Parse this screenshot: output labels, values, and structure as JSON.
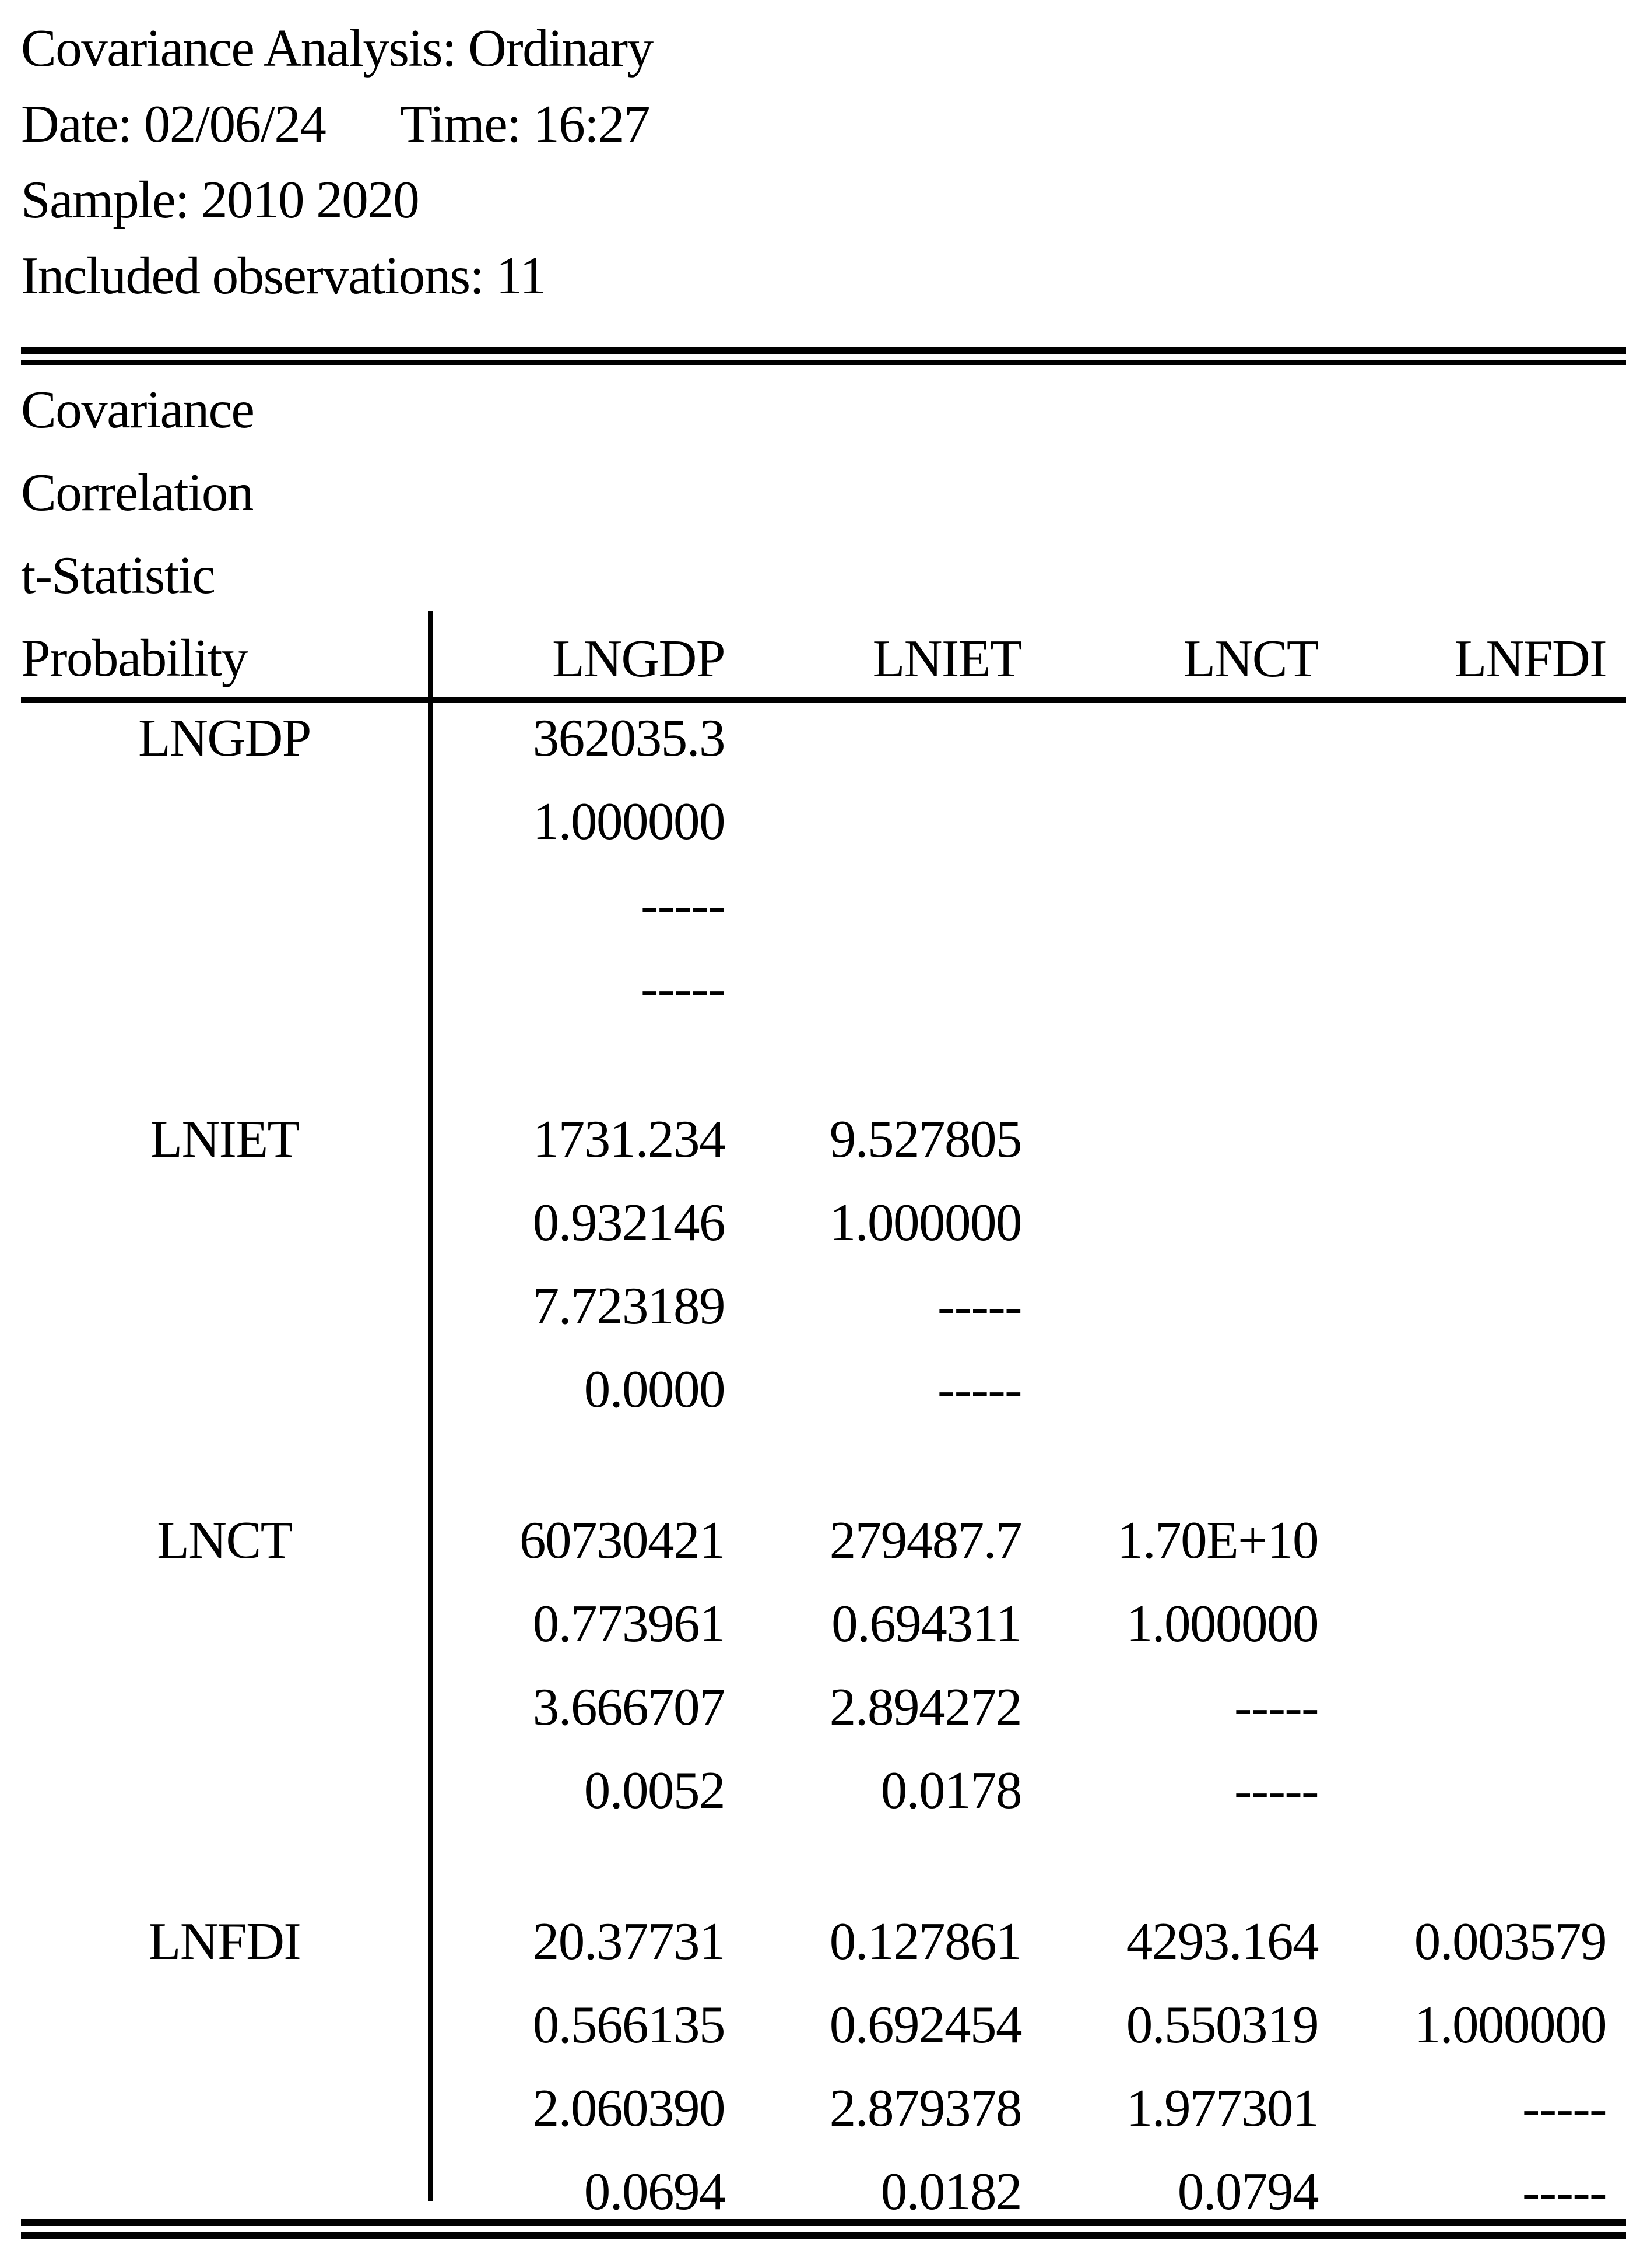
{
  "header": {
    "title": "Covariance Analysis: Ordinary",
    "date": "Date: 02/06/24",
    "time": "Time: 16:27",
    "sample": "Sample: 2010 2020",
    "observations": "Included observations: 11"
  },
  "measures": [
    "Covariance",
    "Correlation",
    "t-Statistic",
    "Probability"
  ],
  "columns": [
    "LNGDP",
    "LNIET",
    "LNCT",
    "LNFDI"
  ],
  "rows": [
    {
      "label": "LNGDP",
      "values": [
        [
          "362035.3",
          "",
          "",
          ""
        ],
        [
          "1.000000",
          "",
          "",
          ""
        ],
        [
          "-----",
          "",
          "",
          ""
        ],
        [
          "-----",
          "",
          "",
          ""
        ]
      ]
    },
    {
      "label": "LNIET",
      "values": [
        [
          "1731.234",
          "9.527805",
          "",
          ""
        ],
        [
          "0.932146",
          "1.000000",
          "",
          ""
        ],
        [
          "7.723189",
          "-----",
          "",
          ""
        ],
        [
          "0.0000",
          "-----",
          "",
          ""
        ]
      ]
    },
    {
      "label": "LNCT",
      "values": [
        [
          "60730421",
          "279487.7",
          "1.70E+10",
          ""
        ],
        [
          "0.773961",
          "0.694311",
          "1.000000",
          ""
        ],
        [
          "3.666707",
          "2.894272",
          "-----",
          ""
        ],
        [
          "0.0052",
          "0.0178",
          "-----",
          ""
        ]
      ]
    },
    {
      "label": "LNFDI",
      "values": [
        [
          "20.37731",
          "0.127861",
          "4293.164",
          "0.003579"
        ],
        [
          "0.566135",
          "0.692454",
          "0.550319",
          "1.000000"
        ],
        [
          "2.060390",
          "2.879378",
          "1.977301",
          "-----"
        ],
        [
          "0.0694",
          "0.0182",
          "0.0794",
          "-----"
        ]
      ]
    }
  ],
  "colors": {
    "text": "#000000",
    "background": "#ffffff"
  }
}
